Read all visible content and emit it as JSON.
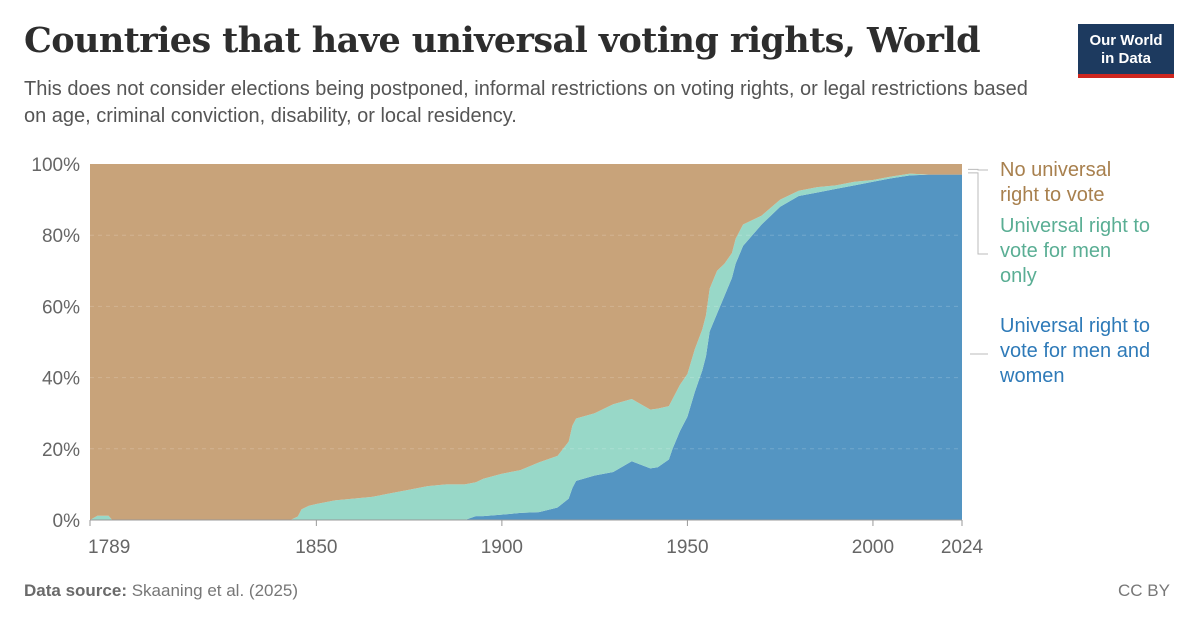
{
  "header": {
    "title": "Countries that have universal voting rights, World",
    "subtitle": "This does not consider elections being postponed, informal restrictions on voting rights, or legal restrictions based on age, criminal conviction, disability, or local residency."
  },
  "logo": {
    "line1": "Our World",
    "line2": "in Data",
    "bg": "#1d3a5f",
    "accent": "#ce261e"
  },
  "footer": {
    "source_label": "Data source:",
    "source_text": "Skaaning et al. (2025)",
    "license": "CC BY"
  },
  "chart_data": {
    "type": "area",
    "stacked": true,
    "xlim": [
      1789,
      2024
    ],
    "ylim": [
      0,
      100
    ],
    "y_unit": "%",
    "x_ticks": [
      "1789",
      "1850",
      "1900",
      "1950",
      "2000",
      "2024"
    ],
    "y_ticks": [
      "0%",
      "20%",
      "40%",
      "60%",
      "80%",
      "100%"
    ],
    "grid": "horizontal dashed",
    "legend_placement": "right",
    "x": [
      1789,
      1791,
      1792,
      1794,
      1795,
      1843,
      1845,
      1846,
      1848,
      1850,
      1855,
      1860,
      1865,
      1870,
      1875,
      1880,
      1885,
      1890,
      1893,
      1895,
      1900,
      1905,
      1910,
      1915,
      1918,
      1919,
      1920,
      1925,
      1930,
      1935,
      1940,
      1942,
      1945,
      1946,
      1948,
      1950,
      1952,
      1954,
      1955,
      1956,
      1958,
      1960,
      1962,
      1963,
      1965,
      1970,
      1975,
      1980,
      1985,
      1990,
      1995,
      2000,
      2005,
      2010,
      2015,
      2020,
      2024
    ],
    "series": [
      {
        "name": "Universal right to vote for men and women",
        "color": "#5495c2",
        "values": [
          0,
          0,
          0,
          0,
          0,
          0,
          0,
          0,
          0,
          0,
          0,
          0,
          0,
          0,
          0,
          0,
          0,
          0,
          1.1,
          1.1,
          1.5,
          2.0,
          2.2,
          3.5,
          6.0,
          9.0,
          11.0,
          12.5,
          13.5,
          16.5,
          14.5,
          14.8,
          17.0,
          20.0,
          25.0,
          29.0,
          36.0,
          42.0,
          46.0,
          53.0,
          58.0,
          63.0,
          68.0,
          72.0,
          77.0,
          83.0,
          88.0,
          91.0,
          92.0,
          93.0,
          94.0,
          95.0,
          96.0,
          96.8,
          97.0,
          97.0,
          97.0
        ]
      },
      {
        "name": "Universal right to vote for men only",
        "color": "#98d8c8",
        "values": [
          0,
          1.2,
          1.2,
          1.2,
          0,
          0,
          1.0,
          3.0,
          4.0,
          4.5,
          5.5,
          6.0,
          6.5,
          7.5,
          8.5,
          9.5,
          10.0,
          10.0,
          9.5,
          10.5,
          11.5,
          12.0,
          14.0,
          14.5,
          16.0,
          17.5,
          17.5,
          17.5,
          19.0,
          17.5,
          16.5,
          16.5,
          15.0,
          14.0,
          13.0,
          12.0,
          12.0,
          11.5,
          11.5,
          12.0,
          12.0,
          9.0,
          7.0,
          7.0,
          6.0,
          2.5,
          2.0,
          1.5,
          1.5,
          1.0,
          1.0,
          0.5,
          0.5,
          0.5,
          0,
          0,
          0
        ]
      },
      {
        "name": "No universal right to vote",
        "color": "#c8a37a",
        "values": [
          100,
          98.8,
          98.8,
          98.8,
          100,
          100,
          99.0,
          97.0,
          96.0,
          95.5,
          94.5,
          94.0,
          93.5,
          92.5,
          91.5,
          90.5,
          90.0,
          90.0,
          89.4,
          88.4,
          87.0,
          86.0,
          83.8,
          82.0,
          78.0,
          73.5,
          71.5,
          70.0,
          67.5,
          66.0,
          69.0,
          68.7,
          68.0,
          66.0,
          62.0,
          59.0,
          52.0,
          46.5,
          42.5,
          35.0,
          30.0,
          28.0,
          25.0,
          21.0,
          17.0,
          14.5,
          10.0,
          7.5,
          6.5,
          6.0,
          5.0,
          4.5,
          3.5,
          2.7,
          3.0,
          3.0,
          3.0
        ]
      }
    ]
  }
}
